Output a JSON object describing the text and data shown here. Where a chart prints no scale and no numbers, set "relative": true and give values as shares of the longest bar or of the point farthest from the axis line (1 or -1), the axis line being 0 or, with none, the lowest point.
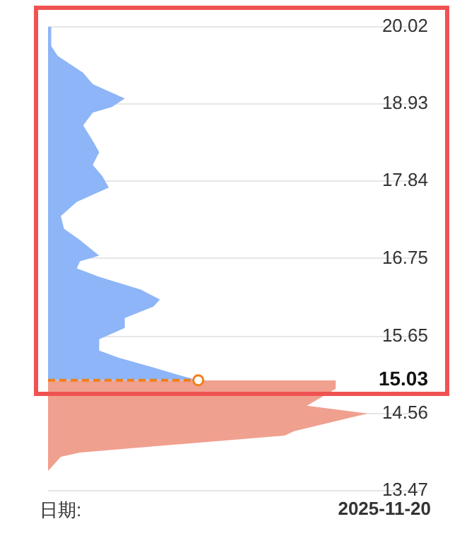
{
  "chart_data": {
    "type": "area",
    "orientation": "horizontal",
    "relative": true,
    "ylim": [
      13.47,
      20.02
    ],
    "yticks": [
      20.02,
      18.93,
      17.84,
      16.75,
      15.65,
      15.03,
      14.56,
      13.47
    ],
    "grid": "y",
    "series": [
      {
        "color": "#8db5f7",
        "x": [
          20.02,
          19.75,
          19.61,
          19.37,
          19.21,
          19.01,
          18.89,
          18.81,
          18.63,
          18.41,
          18.25,
          18.07,
          17.91,
          17.75,
          17.55,
          17.35,
          17.17,
          17.01,
          16.79,
          16.71,
          16.61,
          16.49,
          16.31,
          16.17,
          16.07,
          15.91,
          15.77,
          15.61,
          15.45,
          15.35,
          15.21,
          15.09,
          15.03
        ],
        "values": [
          0.01,
          0.01,
          0.03,
          0.11,
          0.14,
          0.24,
          0.2,
          0.14,
          0.11,
          0.14,
          0.16,
          0.14,
          0.17,
          0.19,
          0.09,
          0.04,
          0.05,
          0.1,
          0.16,
          0.1,
          0.09,
          0.16,
          0.29,
          0.35,
          0.33,
          0.24,
          0.24,
          0.16,
          0.16,
          0.22,
          0.33,
          0.42,
          0.47
        ]
      },
      {
        "color": "#f0a08f",
        "x": [
          15.03,
          14.91,
          14.67,
          14.56,
          14.31,
          14.25,
          14.01,
          13.95,
          13.75,
          13.47
        ],
        "values": [
          0.9,
          0.9,
          0.81,
          1,
          0.77,
          0.74,
          0.1,
          0.04,
          0.0,
          0.0
        ]
      }
    ],
    "ref_lines": [
      {
        "axis": "y",
        "value": 15.03,
        "color": "#f07f1a",
        "line_style": "dashed"
      }
    ],
    "annotations": [
      "日期:",
      "2025-11-20"
    ]
  }
}
